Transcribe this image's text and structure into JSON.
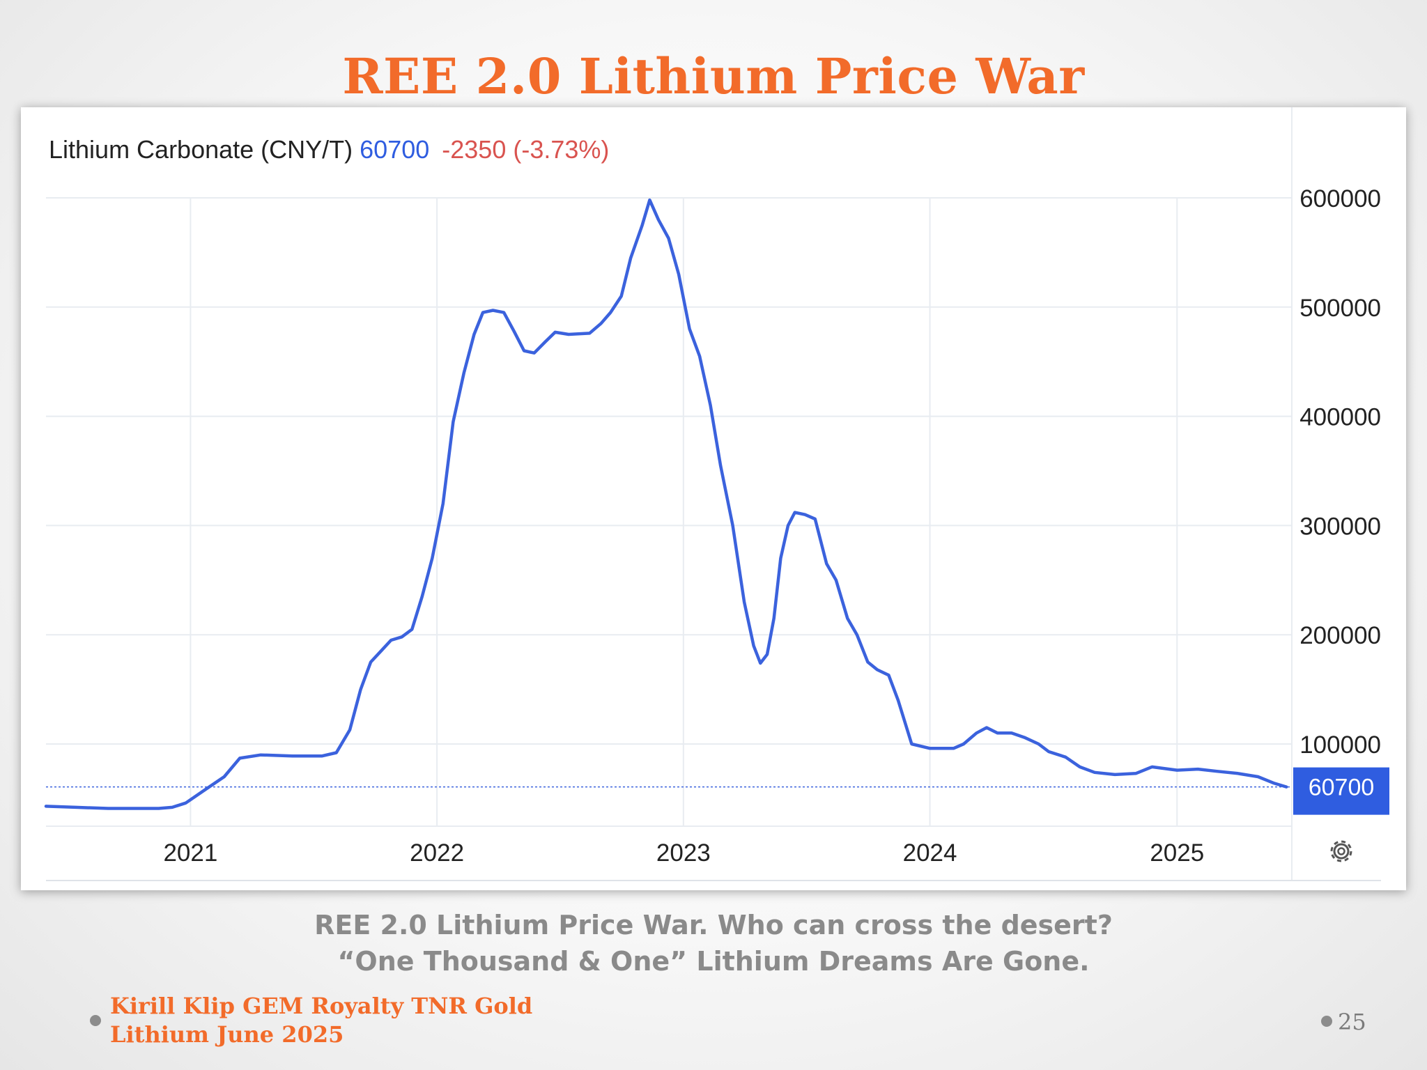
{
  "slide": {
    "title": "REE 2.0 Lithium Price War",
    "caption_line1": "REE 2.0 Lithium Price War. Who can cross the desert?",
    "caption_line2": "“One Thousand & One” Lithium Dreams Are Gone.",
    "footer_line1": "Kirill Klip GEM Royalty TNR Gold",
    "footer_line2": "Lithium June 2025",
    "page_number": "25",
    "accent_color": "#f26b2a"
  },
  "chart_data": {
    "type": "line",
    "title": "Lithium Carbonate (CNY/T)",
    "last_value": "60700",
    "change_text": "-2350 (-3.73%)",
    "last_value_color": "#2f5de0",
    "change_color": "#d9534f",
    "series_color": "#3b62dd",
    "x_ticks": [
      "2021",
      "2022",
      "2023",
      "2024",
      "2025"
    ],
    "y_ticks": [
      "100000",
      "200000",
      "300000",
      "400000",
      "500000",
      "600000"
    ],
    "xlim": [
      "2020-06-01",
      "2025-06-20"
    ],
    "ylim": [
      -25000,
      600000
    ],
    "current_price": 60700,
    "grid": true,
    "settings_icon": "gear-icon",
    "series": [
      {
        "values": [
          [
            "2020-06-01",
            43000
          ],
          [
            "2020-07-15",
            42000
          ],
          [
            "2020-09-01",
            41000
          ],
          [
            "2020-11-15",
            41000
          ],
          [
            "2020-12-05",
            42000
          ],
          [
            "2020-12-25",
            46000
          ],
          [
            "2021-01-20",
            57000
          ],
          [
            "2021-02-20",
            70000
          ],
          [
            "2021-03-15",
            87000
          ],
          [
            "2021-04-15",
            90000
          ],
          [
            "2021-06-01",
            89000
          ],
          [
            "2021-07-15",
            89000
          ],
          [
            "2021-08-05",
            92000
          ],
          [
            "2021-08-25",
            113000
          ],
          [
            "2021-09-10",
            150000
          ],
          [
            "2021-09-25",
            175000
          ],
          [
            "2021-10-10",
            185000
          ],
          [
            "2021-10-25",
            195000
          ],
          [
            "2021-11-10",
            198000
          ],
          [
            "2021-11-25",
            205000
          ],
          [
            "2021-12-10",
            235000
          ],
          [
            "2021-12-25",
            270000
          ],
          [
            "2022-01-10",
            320000
          ],
          [
            "2022-01-25",
            395000
          ],
          [
            "2022-02-10",
            440000
          ],
          [
            "2022-02-25",
            475000
          ],
          [
            "2022-03-10",
            495000
          ],
          [
            "2022-03-25",
            497000
          ],
          [
            "2022-04-10",
            495000
          ],
          [
            "2022-04-25",
            478000
          ],
          [
            "2022-05-10",
            460000
          ],
          [
            "2022-05-25",
            458000
          ],
          [
            "2022-06-10",
            468000
          ],
          [
            "2022-06-25",
            477000
          ],
          [
            "2022-07-15",
            475000
          ],
          [
            "2022-08-15",
            476000
          ],
          [
            "2022-09-01",
            485000
          ],
          [
            "2022-09-15",
            495000
          ],
          [
            "2022-10-01",
            510000
          ],
          [
            "2022-10-15",
            545000
          ],
          [
            "2022-11-01",
            575000
          ],
          [
            "2022-11-12",
            598000
          ],
          [
            "2022-11-25",
            580000
          ],
          [
            "2022-12-10",
            563000
          ],
          [
            "2022-12-25",
            530000
          ],
          [
            "2023-01-10",
            480000
          ],
          [
            "2023-01-25",
            455000
          ],
          [
            "2023-02-10",
            410000
          ],
          [
            "2023-02-25",
            355000
          ],
          [
            "2023-03-15",
            300000
          ],
          [
            "2023-04-01",
            230000
          ],
          [
            "2023-04-15",
            190000
          ],
          [
            "2023-04-25",
            174000
          ],
          [
            "2023-05-05",
            182000
          ],
          [
            "2023-05-15",
            215000
          ],
          [
            "2023-05-25",
            270000
          ],
          [
            "2023-06-05",
            300000
          ],
          [
            "2023-06-15",
            312000
          ],
          [
            "2023-06-30",
            310000
          ],
          [
            "2023-07-15",
            306000
          ],
          [
            "2023-08-01",
            265000
          ],
          [
            "2023-08-15",
            250000
          ],
          [
            "2023-09-01",
            215000
          ],
          [
            "2023-09-15",
            200000
          ],
          [
            "2023-10-01",
            175000
          ],
          [
            "2023-10-15",
            168000
          ],
          [
            "2023-11-01",
            163000
          ],
          [
            "2023-11-15",
            140000
          ],
          [
            "2023-12-05",
            100000
          ],
          [
            "2024-01-01",
            96000
          ],
          [
            "2024-02-05",
            96000
          ],
          [
            "2024-02-20",
            100000
          ],
          [
            "2024-03-10",
            110000
          ],
          [
            "2024-03-25",
            115000
          ],
          [
            "2024-04-10",
            110000
          ],
          [
            "2024-05-01",
            110000
          ],
          [
            "2024-05-20",
            106000
          ],
          [
            "2024-06-10",
            100000
          ],
          [
            "2024-06-25",
            93000
          ],
          [
            "2024-07-20",
            88000
          ],
          [
            "2024-08-10",
            79000
          ],
          [
            "2024-09-01",
            74000
          ],
          [
            "2024-10-01",
            72000
          ],
          [
            "2024-11-01",
            73000
          ],
          [
            "2024-11-25",
            79000
          ],
          [
            "2025-01-01",
            76000
          ],
          [
            "2025-02-01",
            77000
          ],
          [
            "2025-03-01",
            75000
          ],
          [
            "2025-04-01",
            73000
          ],
          [
            "2025-05-01",
            70000
          ],
          [
            "2025-05-25",
            64000
          ],
          [
            "2025-06-12",
            60700
          ]
        ]
      }
    ]
  }
}
